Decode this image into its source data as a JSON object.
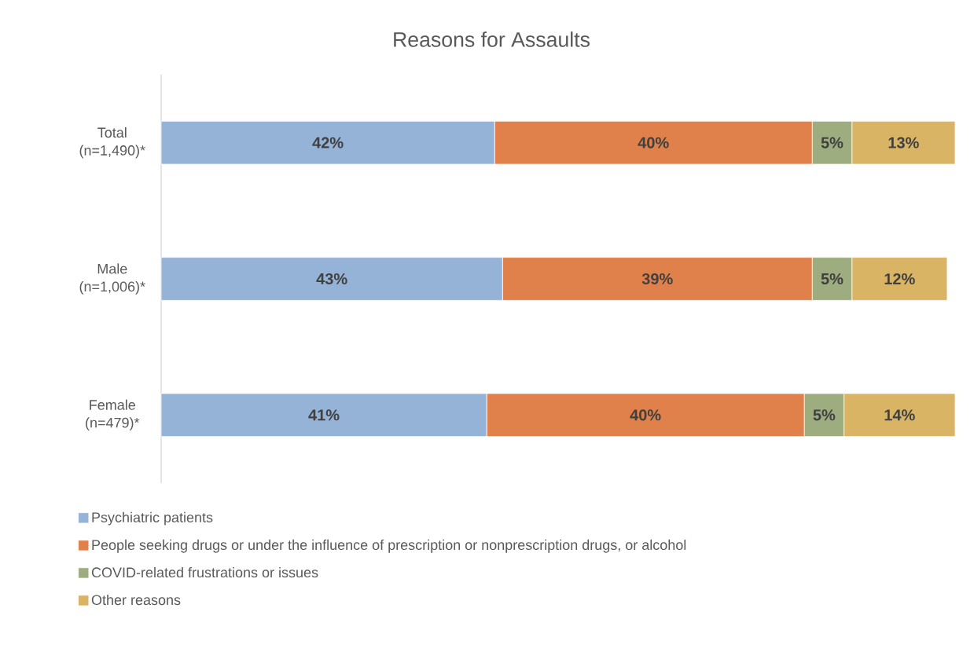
{
  "chart_data": {
    "type": "bar",
    "title": "Reasons for Assaults",
    "orientation": "horizontal",
    "stacked": true,
    "legend": "bottom",
    "categories": [
      "Total (n=1,490)*",
      "Male (n=1,006)*",
      "Female (n=479)*"
    ],
    "series": [
      {
        "name": "Psychiatric patients",
        "color": "#95b3d7",
        "values": [
          42,
          43,
          41
        ],
        "value_labels": [
          "42%",
          "43%",
          "41%"
        ]
      },
      {
        "name": "People seeking drugs or under the influence of prescription or nonprescription drugs, or alcohol",
        "color": "#e0804a",
        "values": [
          40,
          39,
          40
        ],
        "value_labels": [
          "40%",
          "39%",
          "40%"
        ]
      },
      {
        "name": "COVID-related frustrations or issues",
        "color": "#9ead80",
        "values": [
          5,
          5,
          5
        ],
        "value_labels": [
          "5%",
          "5%",
          "5%"
        ]
      },
      {
        "name": "Other reasons",
        "color": "#dab465",
        "values": [
          13,
          12,
          14
        ],
        "value_labels": [
          "13%",
          "12%",
          "14%"
        ]
      }
    ]
  }
}
